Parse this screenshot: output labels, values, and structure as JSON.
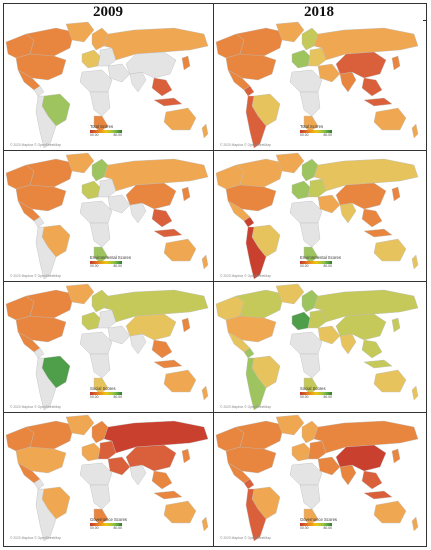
{
  "columns": [
    "2009",
    "2018"
  ],
  "credit": "© 2020 Mapbox © OpenStreetMap",
  "legend_range": {
    "min": "00.00",
    "max": "80.00"
  },
  "colors": {
    "red": "#c9402e",
    "orange_red": "#d9603a",
    "orange": "#e8863f",
    "light_orange": "#efa851",
    "yellow": "#e6c35c",
    "yellow_green": "#c5c95a",
    "light_green": "#9ec45f",
    "green": "#4f9e4a",
    "grey": "#e4e4e4",
    "ocean": "#ffffff",
    "border": "#bdbdbd"
  },
  "panels": [
    {
      "id": "total-2009",
      "legend_title": "Total Scores",
      "fills": {
        "na": "orange",
        "greenland": "light_orange",
        "ca": "orange",
        "us": "orange",
        "sa_br": "light_green",
        "sa_rest": "grey",
        "eu_west": "yellow",
        "scandinavia": "light_orange",
        "eu_east": "grey",
        "ru": "light_orange",
        "me": "grey",
        "af": "grey",
        "za": "orange",
        "cn": "grey",
        "in": "grey",
        "se_asia": "orange_red",
        "au": "light_orange",
        "jp": "orange"
      }
    },
    {
      "id": "total-2018",
      "legend_title": "Total Scores",
      "fills": {
        "na": "orange",
        "greenland": "light_orange",
        "ca": "orange",
        "us": "orange",
        "sa_br": "yellow",
        "sa_rest": "orange_red",
        "eu_west": "light_green",
        "scandinavia": "yellow_green",
        "eu_east": "yellow",
        "ru": "light_orange",
        "me": "light_orange",
        "af": "grey",
        "za": "light_orange",
        "cn": "orange_red",
        "in": "orange",
        "se_asia": "orange_red",
        "au": "light_orange",
        "jp": "orange"
      }
    },
    {
      "id": "env-2009",
      "legend_title": "Environmental Scores",
      "fills": {
        "na": "orange",
        "greenland": "light_orange",
        "ca": "orange",
        "us": "orange",
        "sa_br": "light_orange",
        "sa_rest": "grey",
        "eu_west": "yellow_green",
        "scandinavia": "light_green",
        "eu_east": "grey",
        "ru": "light_orange",
        "me": "grey",
        "af": "grey",
        "za": "light_green",
        "cn": "orange",
        "in": "grey",
        "se_asia": "orange_red",
        "au": "light_orange",
        "jp": "orange"
      }
    },
    {
      "id": "env-2018",
      "legend_title": "Environmental Scores",
      "fills": {
        "na": "light_orange",
        "greenland": "light_orange",
        "ca": "light_orange",
        "us": "orange",
        "sa_br": "yellow",
        "sa_rest": "red",
        "eu_west": "light_green",
        "scandinavia": "light_green",
        "eu_east": "yellow_green",
        "ru": "yellow",
        "me": "light_orange",
        "af": "grey",
        "za": "light_green",
        "cn": "orange",
        "in": "yellow",
        "se_asia": "orange",
        "au": "yellow",
        "jp": "orange"
      }
    },
    {
      "id": "social-2009",
      "legend_title": "Social Scores",
      "fills": {
        "na": "orange",
        "greenland": "light_orange",
        "ca": "orange",
        "us": "orange",
        "sa_br": "green",
        "sa_rest": "grey",
        "eu_west": "yellow_green",
        "scandinavia": "yellow_green",
        "eu_east": "grey",
        "ru": "yellow_green",
        "me": "grey",
        "af": "grey",
        "za": "yellow",
        "cn": "yellow",
        "in": "grey",
        "se_asia": "orange",
        "au": "light_orange",
        "jp": "orange"
      }
    },
    {
      "id": "social-2018",
      "legend_title": "Social Scores",
      "fills": {
        "na": "yellow",
        "greenland": "yellow",
        "ca": "yellow_green",
        "us": "light_orange",
        "sa_br": "yellow",
        "sa_rest": "light_green",
        "eu_west": "green",
        "scandinavia": "light_green",
        "eu_east": "yellow_green",
        "ru": "yellow_green",
        "me": "yellow",
        "af": "grey",
        "za": "yellow_green",
        "cn": "yellow_green",
        "in": "yellow",
        "se_asia": "yellow_green",
        "au": "yellow",
        "jp": "yellow_green"
      }
    },
    {
      "id": "gov-2009",
      "legend_title": "Governance Scores",
      "fills": {
        "na": "orange",
        "greenland": "light_orange",
        "ca": "orange",
        "us": "light_orange",
        "sa_br": "light_orange",
        "sa_rest": "grey",
        "eu_west": "light_orange",
        "scandinavia": "orange",
        "eu_east": "orange_red",
        "ru": "red",
        "me": "orange_red",
        "af": "grey",
        "za": "orange",
        "cn": "orange_red",
        "in": "grey",
        "se_asia": "orange",
        "au": "light_orange",
        "jp": "orange"
      }
    },
    {
      "id": "gov-2018",
      "legend_title": "Governance Scores",
      "fills": {
        "na": "orange",
        "greenland": "light_orange",
        "ca": "orange",
        "us": "orange",
        "sa_br": "light_orange",
        "sa_rest": "orange_red",
        "eu_west": "light_orange",
        "scandinavia": "light_orange",
        "eu_east": "orange",
        "ru": "orange",
        "me": "orange",
        "af": "grey",
        "za": "light_orange",
        "cn": "red",
        "in": "orange",
        "se_asia": "orange_red",
        "au": "light_orange",
        "jp": "orange"
      }
    }
  ]
}
